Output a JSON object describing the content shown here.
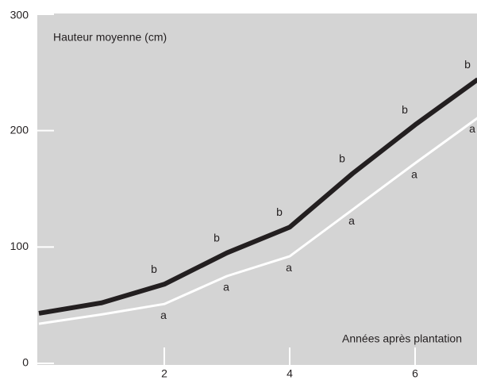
{
  "chart_data": {
    "type": "line",
    "ylabel": "Hauteur moyenne (cm)",
    "xlabel": "Années après plantation",
    "x": [
      0,
      1,
      2,
      3,
      4,
      5,
      6,
      7
    ],
    "series": [
      {
        "color": "#231f20",
        "values": [
          43,
          52,
          68,
          95,
          117,
          163,
          205,
          244
        ],
        "point_labels": [
          null,
          null,
          "b",
          "b",
          "b",
          "b",
          "b",
          "b"
        ]
      },
      {
        "color": "#ffffff",
        "values": [
          34,
          42,
          51,
          75,
          92,
          132,
          172,
          211
        ],
        "point_labels": [
          null,
          null,
          "a",
          "a",
          "a",
          "a",
          "a",
          "a"
        ]
      }
    ],
    "xlim": [
      0,
      7
    ],
    "ylim": [
      0,
      300
    ],
    "xticks": [
      2,
      4,
      6
    ],
    "yticks": [
      0,
      100,
      200,
      300
    ],
    "background": "#d4d4d4"
  }
}
